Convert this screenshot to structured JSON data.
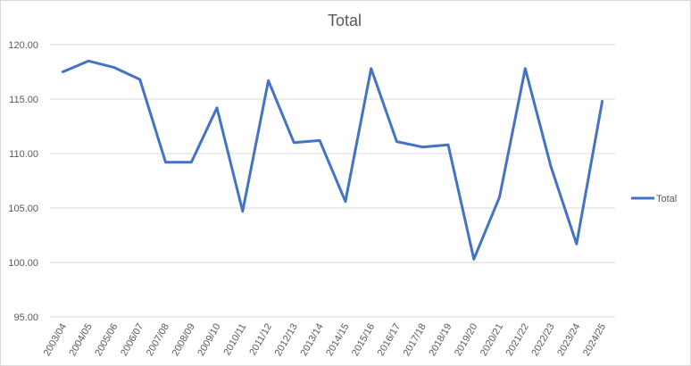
{
  "chart_data": {
    "type": "line",
    "title": "Total",
    "xlabel": "",
    "ylabel": "",
    "ylim": [
      95,
      120
    ],
    "y_ticks": [
      "95.00",
      "100.00",
      "105.00",
      "110.00",
      "115.00",
      "120.00"
    ],
    "grid": true,
    "legend_position": "right",
    "categories": [
      "2003/04",
      "2004/05",
      "2005/06",
      "2006/07",
      "2007/08",
      "2008/09",
      "2009/10",
      "2010/11",
      "2011/12",
      "2012/13",
      "2013/14",
      "2014/15",
      "2015/16",
      "2016/17",
      "2017/18",
      "2018/19",
      "2019/20",
      "2020/21",
      "2021/22",
      "2022/23",
      "2023/24",
      "2024/25"
    ],
    "series": [
      {
        "name": "Total",
        "color": "#4472c4",
        "values": [
          117.5,
          118.5,
          117.9,
          116.8,
          109.2,
          109.2,
          114.2,
          104.7,
          116.7,
          111.0,
          111.2,
          105.6,
          117.8,
          111.1,
          110.6,
          110.8,
          100.3,
          106.0,
          117.8,
          108.8,
          101.7,
          114.8
        ]
      }
    ]
  }
}
